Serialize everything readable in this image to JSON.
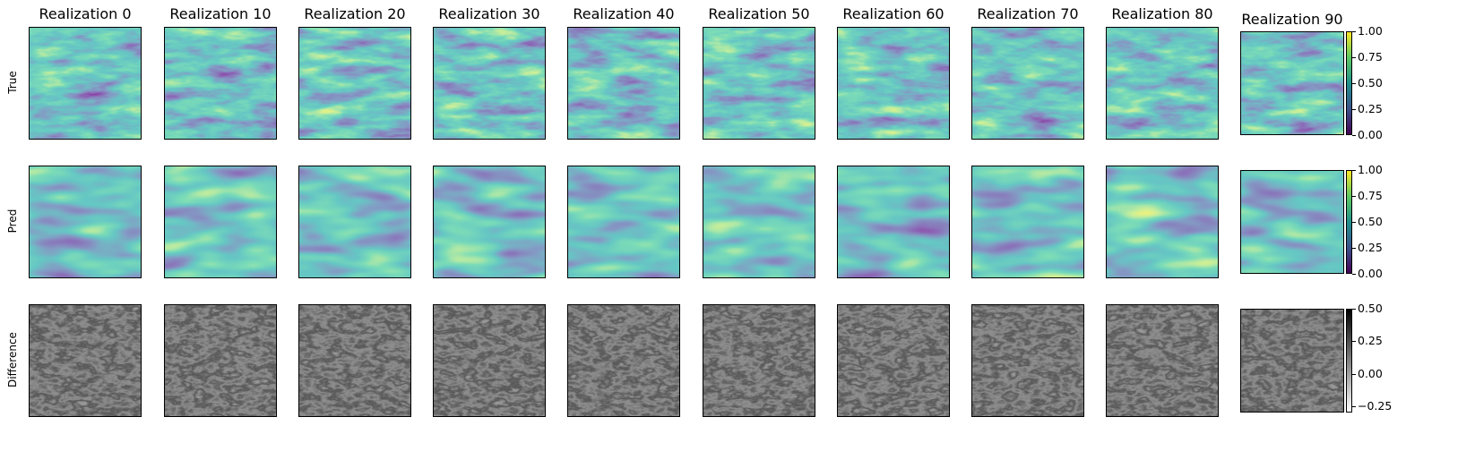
{
  "chart_data": {
    "type": "heatmap",
    "columns": [
      "Realization 0",
      "Realization 10",
      "Realization 20",
      "Realization 30",
      "Realization 40",
      "Realization 50",
      "Realization 60",
      "Realization 70",
      "Realization 80",
      "Realization 90"
    ],
    "rows": [
      {
        "label": "True",
        "colormap": "viridis",
        "vmin": 0.0,
        "vmax": 1.0,
        "colorbar_ticks": [
          "0.00",
          "0.25",
          "0.50",
          "0.75",
          "1.00"
        ]
      },
      {
        "label": "Pred",
        "colormap": "viridis",
        "vmin": 0.0,
        "vmax": 1.0,
        "colorbar_ticks": [
          "0.00",
          "0.25",
          "0.50",
          "0.75",
          "1.00"
        ]
      },
      {
        "label": "Difference",
        "colormap": "gray",
        "vmin": -0.3,
        "vmax": 0.5,
        "colorbar_ticks": [
          "−0.25",
          "0.00",
          "0.25",
          "0.50"
        ]
      }
    ],
    "axes_ticks_visible": false
  },
  "colors": {
    "viridis_low": "#440154",
    "viridis_mid": "#21918c",
    "viridis_high": "#fde725",
    "gray_low": "#ffffff",
    "gray_high": "#000000"
  }
}
